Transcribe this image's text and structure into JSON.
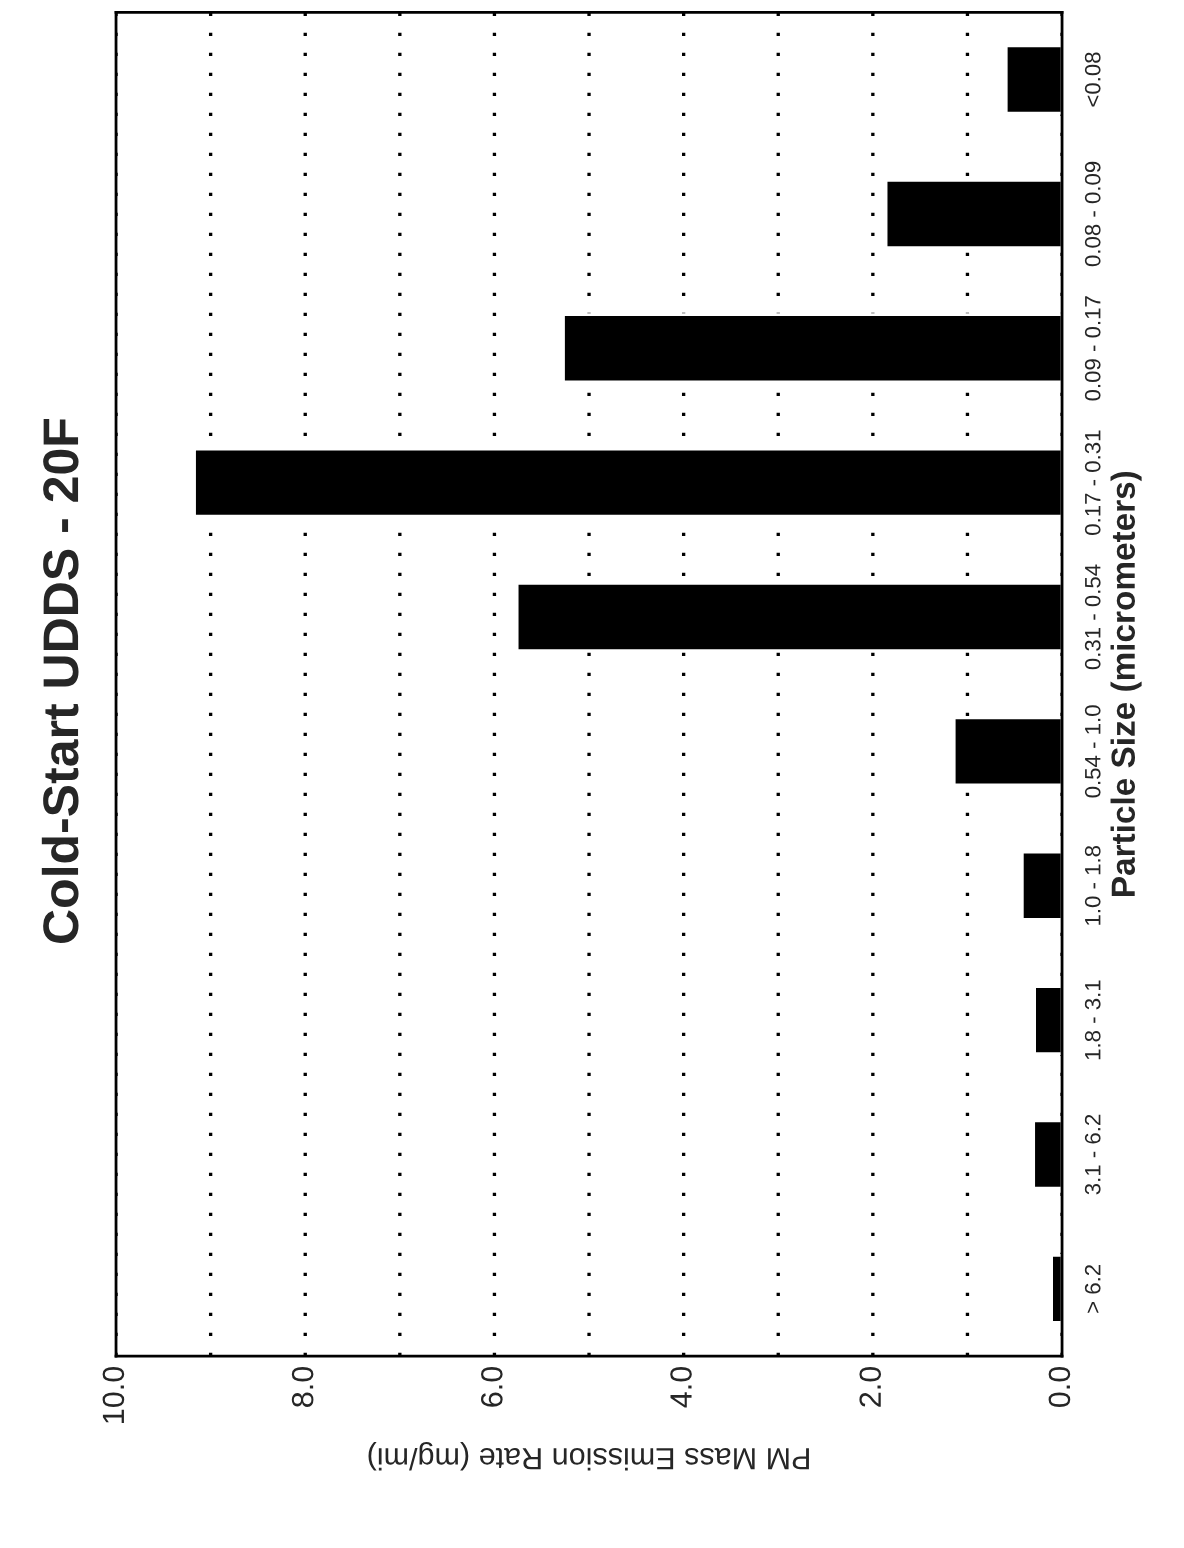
{
  "chart_data": {
    "type": "bar",
    "orientation": "horizontal",
    "title": "Cold-Start UDDS - 20F",
    "xlabel": "PM Mass Emission Rate (mg/mi)",
    "ylabel": "Particle Size (micrometers)",
    "categories": [
      "<0.08",
      "0.08 - 0.09",
      "0.09 - 0.17",
      "0.17 - 0.31",
      "0.31 - 0.54",
      "0.54 - 1.0",
      "1.0 - 1.8",
      "1.8 - 3.1",
      "3.1 - 6.2",
      "> 6.2"
    ],
    "values": [
      0.59,
      1.86,
      5.27,
      9.17,
      5.76,
      1.14,
      0.42,
      0.29,
      0.3,
      0.11
    ],
    "color": "#000000",
    "xlim": [
      10,
      0
    ],
    "xticks": [
      {
        "value": 10,
        "label": "10.0"
      },
      {
        "value": 9,
        "label": null
      },
      {
        "value": 8,
        "label": "8.0"
      },
      {
        "value": 7,
        "label": null
      },
      {
        "value": 6,
        "label": "6.0"
      },
      {
        "value": 5,
        "label": null
      },
      {
        "value": 4,
        "label": "4.0"
      },
      {
        "value": 3,
        "label": null
      },
      {
        "value": 2,
        "label": "2.0"
      },
      {
        "value": 1,
        "label": null
      },
      {
        "value": 0,
        "label": "0.0"
      }
    ],
    "grid": "x",
    "legend": false
  }
}
